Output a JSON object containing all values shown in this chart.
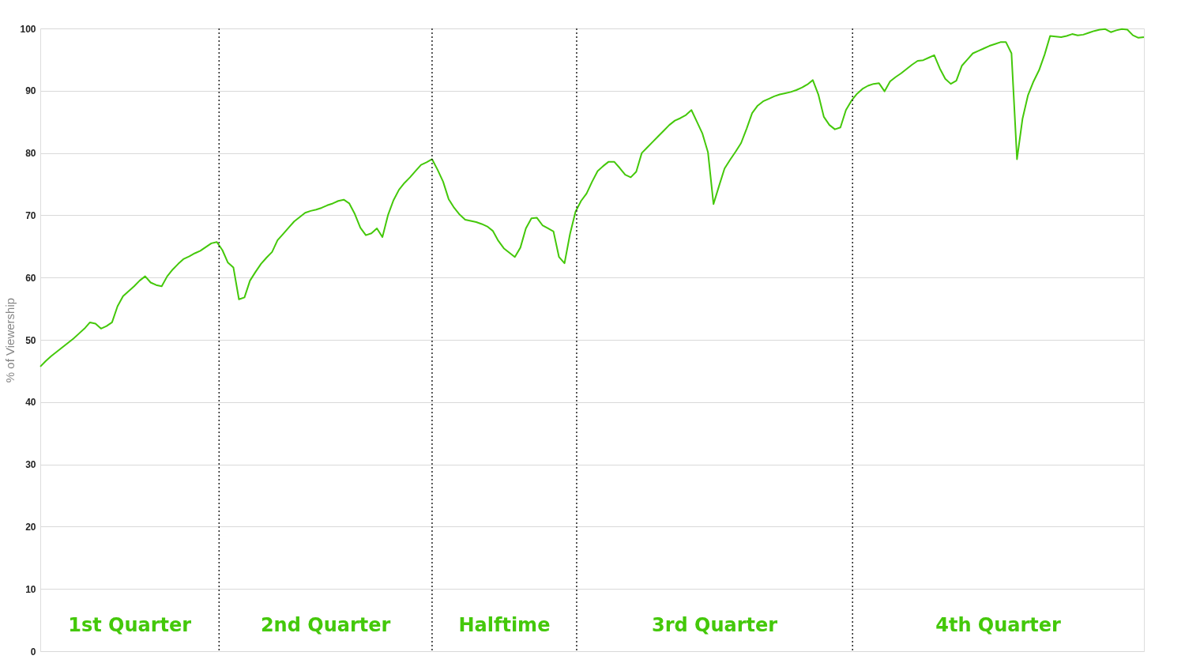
{
  "chart_data": {
    "type": "line",
    "ylabel": "% of Viewership",
    "categories": [
      null,
      null,
      null,
      null,
      null,
      null,
      null,
      null,
      null,
      null,
      null,
      null,
      null,
      null,
      null,
      null,
      null,
      null,
      null,
      null,
      null,
      null,
      null,
      null,
      null,
      null,
      null,
      null,
      null,
      null,
      null,
      null,
      null,
      null,
      null,
      null,
      null,
      null,
      null,
      null,
      null,
      null,
      null,
      null,
      null,
      null,
      null,
      null,
      null,
      null,
      null,
      null,
      null,
      null,
      null,
      null,
      null,
      null,
      null,
      null,
      null,
      null,
      null,
      null,
      null,
      null,
      null,
      null,
      null,
      null,
      null,
      null,
      null,
      null,
      null,
      null,
      null,
      null,
      null,
      null,
      null,
      null,
      null,
      null,
      null,
      null,
      null,
      null,
      null,
      null,
      null,
      null,
      null,
      null,
      null,
      null,
      null,
      null,
      null,
      null,
      null,
      null,
      null,
      null,
      null,
      null,
      null,
      null,
      null,
      null,
      null,
      null,
      null,
      null,
      null,
      null,
      null,
      null,
      null,
      null,
      null,
      null,
      null,
      null,
      null,
      null,
      null,
      null,
      null,
      null,
      null,
      null,
      null,
      null,
      null,
      null,
      null,
      null,
      null,
      null,
      null,
      null,
      null,
      null,
      null,
      null,
      null,
      null,
      null,
      null,
      null,
      null,
      null,
      null,
      null,
      null,
      null,
      null,
      null,
      null,
      null,
      null,
      null,
      null,
      null,
      null,
      null,
      null,
      null,
      null,
      null,
      null,
      null,
      null,
      null,
      null,
      null,
      null,
      null,
      null,
      null,
      null,
      null,
      null,
      null,
      null,
      null,
      null,
      null,
      null,
      null,
      null,
      null,
      null,
      null,
      null,
      null,
      null,
      null,
      null,
      null
    ],
    "series": [
      {
        "color": "#44c80a",
        "values": [
          45.7,
          46.6,
          47.4,
          48.1,
          48.8,
          49.5,
          50.2,
          51.0,
          51.8,
          52.8,
          52.6,
          51.8,
          52.2,
          52.8,
          55.4,
          57.0,
          57.8,
          58.6,
          59.5,
          60.2,
          59.2,
          58.8,
          58.6,
          60.2,
          61.3,
          62.2,
          63.0,
          63.4,
          63.9,
          64.3,
          64.9,
          65.5,
          65.7,
          64.4,
          62.4,
          61.6,
          56.5,
          56.8,
          59.5,
          60.9,
          62.2,
          63.2,
          64.1,
          66.0,
          67.0,
          68.0,
          69.0,
          69.7,
          70.4,
          70.7,
          70.9,
          71.2,
          71.6,
          71.9,
          72.3,
          72.5,
          71.9,
          70.2,
          68.0,
          66.8,
          67.1,
          67.9,
          66.5,
          70.0,
          72.4,
          74.1,
          75.2,
          76.1,
          77.1,
          78.1,
          78.5,
          79.0,
          77.3,
          75.4,
          72.6,
          71.2,
          70.1,
          69.3,
          69.1,
          68.9,
          68.6,
          68.2,
          67.5,
          65.9,
          64.7,
          64.0,
          63.3,
          64.8,
          67.9,
          69.5,
          69.6,
          68.4,
          67.9,
          67.4,
          63.3,
          62.3,
          67.0,
          70.6,
          72.3,
          73.5,
          75.4,
          77.1,
          77.9,
          78.6,
          78.6,
          77.6,
          76.5,
          76.1,
          77.0,
          80.0,
          80.9,
          81.8,
          82.7,
          83.6,
          84.5,
          85.2,
          85.6,
          86.1,
          86.9,
          85.0,
          83.1,
          80.1,
          71.8,
          74.7,
          77.5,
          78.9,
          80.2,
          81.6,
          83.9,
          86.4,
          87.6,
          88.3,
          88.7,
          89.1,
          89.4,
          89.6,
          89.8,
          90.1,
          90.5,
          91.0,
          91.7,
          89.4,
          85.8,
          84.5,
          83.8,
          84.1,
          86.9,
          88.4,
          89.5,
          90.3,
          90.8,
          91.1,
          91.2,
          89.9,
          91.5,
          92.2,
          92.8,
          93.5,
          94.2,
          94.8,
          94.9,
          95.3,
          95.7,
          93.6,
          91.9,
          91.1,
          91.6,
          94.0,
          95.0,
          96.0,
          96.4,
          96.8,
          97.2,
          97.5,
          97.8,
          97.8,
          96.0,
          79.0,
          85.5,
          89.3,
          91.5,
          93.3,
          95.8,
          98.8,
          98.7,
          98.6,
          98.8,
          99.1,
          98.9,
          99.0,
          99.3,
          99.6,
          99.8,
          99.9,
          99.4,
          99.7,
          99.9,
          99.8,
          98.9,
          98.5,
          98.6
        ]
      }
    ],
    "ylim": [
      0,
      100
    ],
    "yticks": [
      0,
      10,
      20,
      30,
      40,
      50,
      60,
      70,
      80,
      90,
      100
    ],
    "grid": "y",
    "tick_labels": "y",
    "line_style": "solid",
    "marker": "none",
    "annotations": [
      "1st Quarter",
      "2nd Quarter",
      "Halftime",
      "3rd Quarter",
      "4th Quarter"
    ]
  }
}
